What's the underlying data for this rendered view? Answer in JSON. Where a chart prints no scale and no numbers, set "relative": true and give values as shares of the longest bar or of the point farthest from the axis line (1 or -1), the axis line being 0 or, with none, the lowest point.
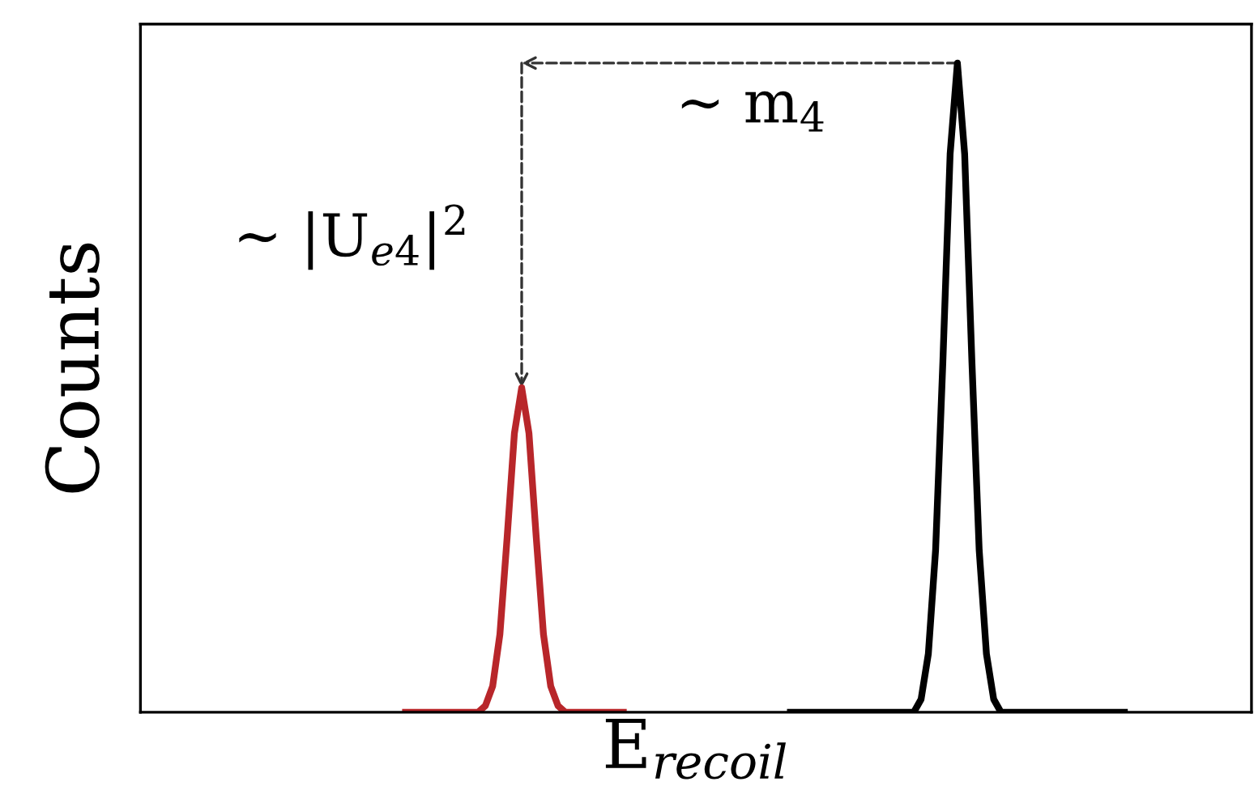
{
  "chart_data": {
    "type": "line",
    "relative": true,
    "tick_labels": false,
    "xlabel": "E$_{recoil}$",
    "ylabel": "Counts",
    "annotations": [
      "∼ m$_{4}$",
      "∼ |U$_{e4}$|$^{2}$"
    ],
    "categories": [
      null,
      null,
      null,
      null,
      null,
      null,
      null,
      null,
      null,
      null,
      null,
      null,
      null,
      null,
      null,
      null,
      null,
      null,
      null,
      null,
      null,
      null,
      null,
      null,
      null,
      null,
      null,
      null,
      null,
      null,
      null,
      null,
      null,
      null,
      null,
      null,
      null,
      null,
      null,
      null,
      null,
      null,
      null,
      null,
      null,
      null,
      null,
      null,
      null,
      null,
      null,
      null,
      null,
      null,
      null,
      null,
      null,
      null,
      null,
      null,
      null,
      null,
      null,
      null,
      null,
      null,
      null,
      null,
      null,
      null,
      null,
      null,
      null,
      null,
      null,
      null,
      null,
      null,
      null,
      null,
      null,
      null,
      null,
      null,
      null,
      null,
      null,
      null,
      null,
      null,
      null,
      null,
      null,
      null,
      null,
      null,
      null,
      null,
      null,
      null,
      null,
      null,
      null,
      null,
      null,
      null,
      null,
      null,
      null,
      null,
      null,
      null,
      null,
      null,
      null,
      null,
      null,
      null,
      null,
      null,
      null,
      null,
      null,
      null,
      null,
      null,
      null,
      null,
      null,
      null,
      null,
      null,
      null,
      null,
      null,
      null,
      null,
      null,
      null,
      null,
      null,
      null,
      null,
      null,
      null,
      null,
      null,
      null,
      null,
      null,
      null,
      null,
      null
    ],
    "series": [
      {
        "color": "#b8262a",
        "values": [
          null,
          null,
          null,
          null,
          null,
          null,
          null,
          null,
          null,
          null,
          null,
          null,
          null,
          null,
          null,
          null,
          null,
          null,
          null,
          null,
          null,
          null,
          null,
          null,
          null,
          null,
          null,
          null,
          null,
          null,
          null,
          null,
          null,
          null,
          null,
          null,
          0,
          0,
          0,
          0,
          0,
          0,
          0,
          0,
          0,
          0,
          0,
          0.01,
          0.04,
          0.12,
          0.27,
          0.43,
          0.5,
          0.43,
          0.27,
          0.12,
          0.04,
          0.01,
          0,
          0,
          0,
          0,
          0,
          0,
          0,
          0,
          0,
          null,
          null,
          null,
          null,
          null,
          null,
          null,
          null,
          null,
          null,
          null,
          null,
          null,
          null,
          null,
          null,
          null,
          null,
          null,
          null,
          null,
          null,
          null,
          null,
          null,
          null,
          null,
          null,
          null,
          null,
          null,
          null,
          null,
          null,
          null,
          null,
          null,
          null,
          null,
          null,
          null,
          null,
          null,
          null,
          null,
          null,
          null,
          null,
          null,
          null,
          null,
          null,
          null,
          null,
          null,
          null,
          null,
          null,
          null,
          null,
          null,
          null,
          null,
          null,
          null,
          null,
          null,
          null,
          null,
          null,
          null,
          null,
          null,
          null,
          null,
          null,
          null,
          null,
          null,
          null,
          null,
          null,
          null,
          null,
          null,
          null
        ]
      },
      {
        "color": "#000000",
        "values": [
          null,
          null,
          null,
          null,
          null,
          null,
          null,
          null,
          null,
          null,
          null,
          null,
          null,
          null,
          null,
          null,
          null,
          null,
          null,
          null,
          null,
          null,
          null,
          null,
          null,
          null,
          null,
          null,
          null,
          null,
          null,
          null,
          null,
          null,
          null,
          null,
          null,
          null,
          null,
          null,
          null,
          null,
          null,
          null,
          null,
          null,
          null,
          null,
          null,
          null,
          null,
          null,
          null,
          null,
          null,
          null,
          null,
          null,
          null,
          null,
          null,
          null,
          null,
          null,
          null,
          null,
          null,
          null,
          null,
          null,
          null,
          null,
          null,
          null,
          null,
          null,
          null,
          null,
          null,
          null,
          null,
          null,
          null,
          null,
          null,
          null,
          null,
          null,
          null,
          0,
          0,
          0,
          0,
          0,
          0,
          0,
          0,
          0,
          0,
          0,
          0,
          0,
          0,
          0,
          0,
          0,
          0,
          0.02,
          0.09,
          0.25,
          0.54,
          0.86,
          1,
          0.86,
          0.54,
          0.25,
          0.09,
          0.02,
          0,
          0,
          0,
          0,
          0,
          0,
          0,
          0,
          0,
          0,
          0,
          0,
          0,
          0,
          0,
          0,
          0,
          0,
          null,
          null,
          null,
          null,
          null,
          null,
          null,
          null,
          null,
          null,
          null,
          null,
          null,
          null,
          null,
          null,
          null
        ]
      }
    ]
  }
}
